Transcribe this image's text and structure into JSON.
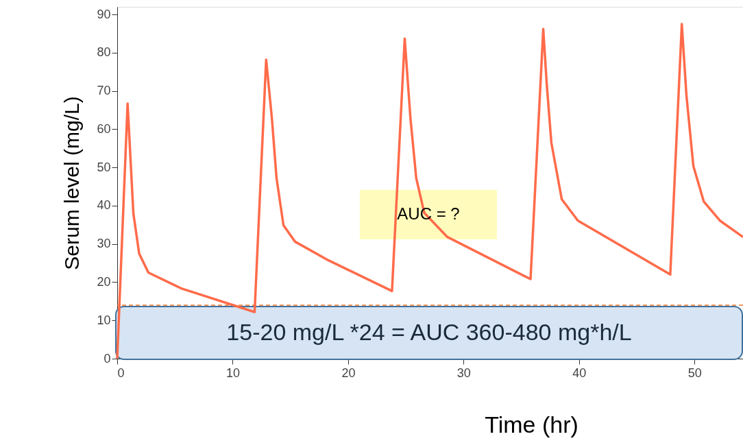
{
  "chart_data": {
    "type": "line",
    "xlabel": "Time (hr)",
    "ylabel": "Serum level (mg/L)",
    "xlim": [
      0,
      54.2
    ],
    "ylim": [
      0,
      92
    ],
    "xticks": [
      0,
      10,
      20,
      30,
      40,
      50
    ],
    "yticks": [
      0,
      10,
      20,
      30,
      40,
      50,
      60,
      70,
      80,
      90
    ],
    "series": [
      {
        "color": "#ff6b4a",
        "x": [
          0,
          0.9,
          1.4,
          1.9,
          2.7,
          5.6,
          11.9,
          12.9,
          13.4,
          13.8,
          14.4,
          15.4,
          18.3,
          23.8,
          24.9,
          25.4,
          25.9,
          26.6,
          28.6,
          35.8,
          36.9,
          37.2,
          37.6,
          38.5,
          39.9,
          47.9,
          48.9,
          49.3,
          49.9,
          50.8,
          52.2,
          54.2
        ],
        "values": [
          0,
          66.7,
          38,
          27.5,
          22.5,
          18.3,
          12.2,
          78.2,
          62.8,
          47.2,
          34.9,
          30.6,
          25.7,
          17.7,
          83.7,
          62.8,
          47.2,
          38.1,
          31.8,
          20.8,
          86.2,
          71.9,
          56.5,
          41.7,
          36.1,
          22.0,
          87.5,
          68.9,
          50.4,
          41.1,
          36.1,
          31.8
        ]
      }
    ],
    "ref_lines": [
      {
        "axis": "y",
        "value": 14,
        "color": "#f07c2c",
        "line_style": "dashed"
      }
    ],
    "annotations": [
      "AUC = ?",
      "15-20 mg/L *24 = AUC 360-480 mg*h/L"
    ]
  }
}
